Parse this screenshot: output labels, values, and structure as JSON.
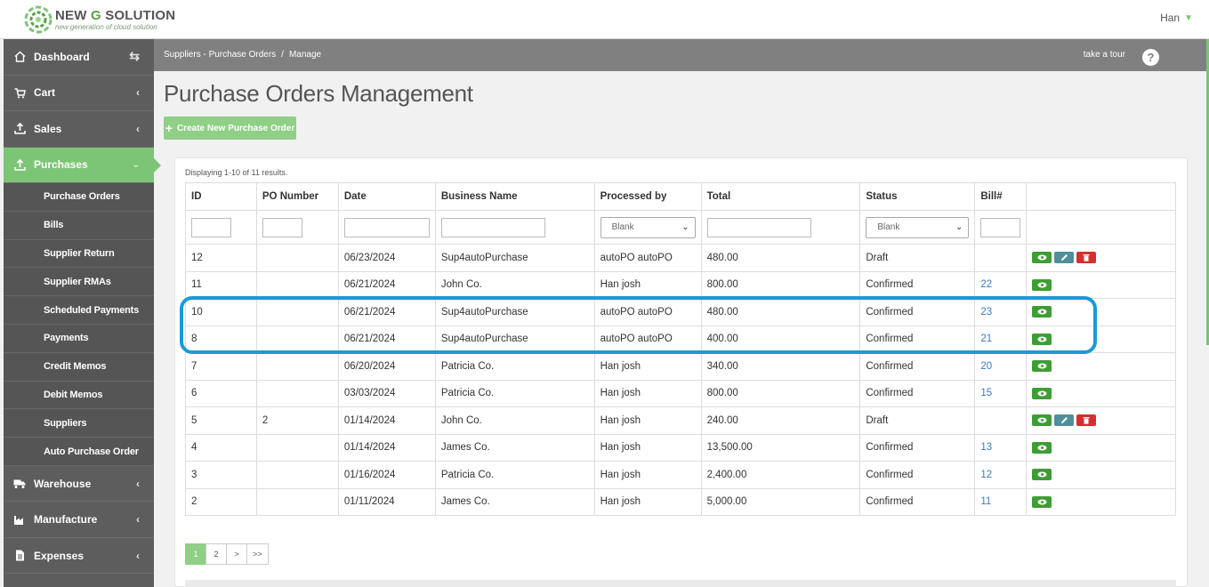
{
  "brand": {
    "name_prefix": "NEW ",
    "name_g": "G",
    "name_suffix": " SOLUTION",
    "tagline": "new generation of cloud solution"
  },
  "user": {
    "name": "Han"
  },
  "sidebar": {
    "items": [
      {
        "label": "Dashboard",
        "icon": "home-icon"
      },
      {
        "label": "Cart",
        "icon": "cart-icon"
      },
      {
        "label": "Sales",
        "icon": "upload-icon"
      },
      {
        "label": "Purchases",
        "icon": "upload-icon",
        "active": true
      },
      {
        "label": "Warehouse",
        "icon": "truck-icon"
      },
      {
        "label": "Manufacture",
        "icon": "factory-icon"
      },
      {
        "label": "Expenses",
        "icon": "document-icon"
      }
    ],
    "subitems": [
      "Purchase Orders",
      "Bills",
      "Supplier Return",
      "Supplier RMAs",
      "Scheduled Payments",
      "Payments",
      "Credit Memos",
      "Debit Memos",
      "Suppliers",
      "Auto Purchase Order"
    ]
  },
  "header": {
    "crumb1": "Suppliers - Purchase Orders",
    "sep": "/",
    "crumb2": "Manage",
    "tour": "take a tour",
    "help": "?"
  },
  "page": {
    "title": "Purchase Orders Management",
    "create_label": "Create New Purchase Order",
    "summary": "Displaying 1-10 of 11 results."
  },
  "table": {
    "columns": [
      "ID",
      "PO Number",
      "Date",
      "Business Name",
      "Processed by",
      "Total",
      "Status",
      "Bill#"
    ],
    "filters": {
      "processed_by": "Blank",
      "status": "Blank"
    },
    "rows": [
      {
        "id": "12",
        "po": "",
        "date": "06/23/2024",
        "business": "Sup4autoPurchase",
        "processed": "autoPO autoPO",
        "total": "480.00",
        "status": "Draft",
        "bill": "",
        "draft": true
      },
      {
        "id": "11",
        "po": "",
        "date": "06/21/2024",
        "business": "John Co.",
        "processed": "Han josh",
        "total": "800.00",
        "status": "Confirmed",
        "bill": "22",
        "draft": false
      },
      {
        "id": "10",
        "po": "",
        "date": "06/21/2024",
        "business": "Sup4autoPurchase",
        "processed": "autoPO autoPO",
        "total": "480.00",
        "status": "Confirmed",
        "bill": "23",
        "draft": false
      },
      {
        "id": "8",
        "po": "",
        "date": "06/21/2024",
        "business": "Sup4autoPurchase",
        "processed": "autoPO autoPO",
        "total": "400.00",
        "status": "Confirmed",
        "bill": "21",
        "draft": false
      },
      {
        "id": "7",
        "po": "",
        "date": "06/20/2024",
        "business": "Patricia Co.",
        "processed": "Han josh",
        "total": "340.00",
        "status": "Confirmed",
        "bill": "20",
        "draft": false
      },
      {
        "id": "6",
        "po": "",
        "date": "03/03/2024",
        "business": "Patricia Co.",
        "processed": "Han josh",
        "total": "800.00",
        "status": "Confirmed",
        "bill": "15",
        "draft": false
      },
      {
        "id": "5",
        "po": "2",
        "date": "01/14/2024",
        "business": "John Co.",
        "processed": "Han josh",
        "total": "240.00",
        "status": "Draft",
        "bill": "",
        "draft": true
      },
      {
        "id": "4",
        "po": "",
        "date": "01/14/2024",
        "business": "James Co.",
        "processed": "Han josh",
        "total": "13,500.00",
        "status": "Confirmed",
        "bill": "13",
        "draft": false
      },
      {
        "id": "3",
        "po": "",
        "date": "01/16/2024",
        "business": "Patricia Co.",
        "processed": "Han josh",
        "total": "2,400.00",
        "status": "Confirmed",
        "bill": "12",
        "draft": false
      },
      {
        "id": "2",
        "po": "",
        "date": "01/11/2024",
        "business": "James Co.",
        "processed": "Han josh",
        "total": "5,000.00",
        "status": "Confirmed",
        "bill": "11",
        "draft": false
      }
    ]
  },
  "pagination": [
    "1",
    "2",
    ">",
    ">>"
  ],
  "colors": {
    "accent": "#7cc576",
    "sidebar": "#5d5d5d",
    "header": "#808080",
    "highlight": "#199bd7",
    "view": "#3e9d35",
    "edit": "#4f8f99",
    "delete": "#d62f2f",
    "link": "#3a7abf"
  }
}
